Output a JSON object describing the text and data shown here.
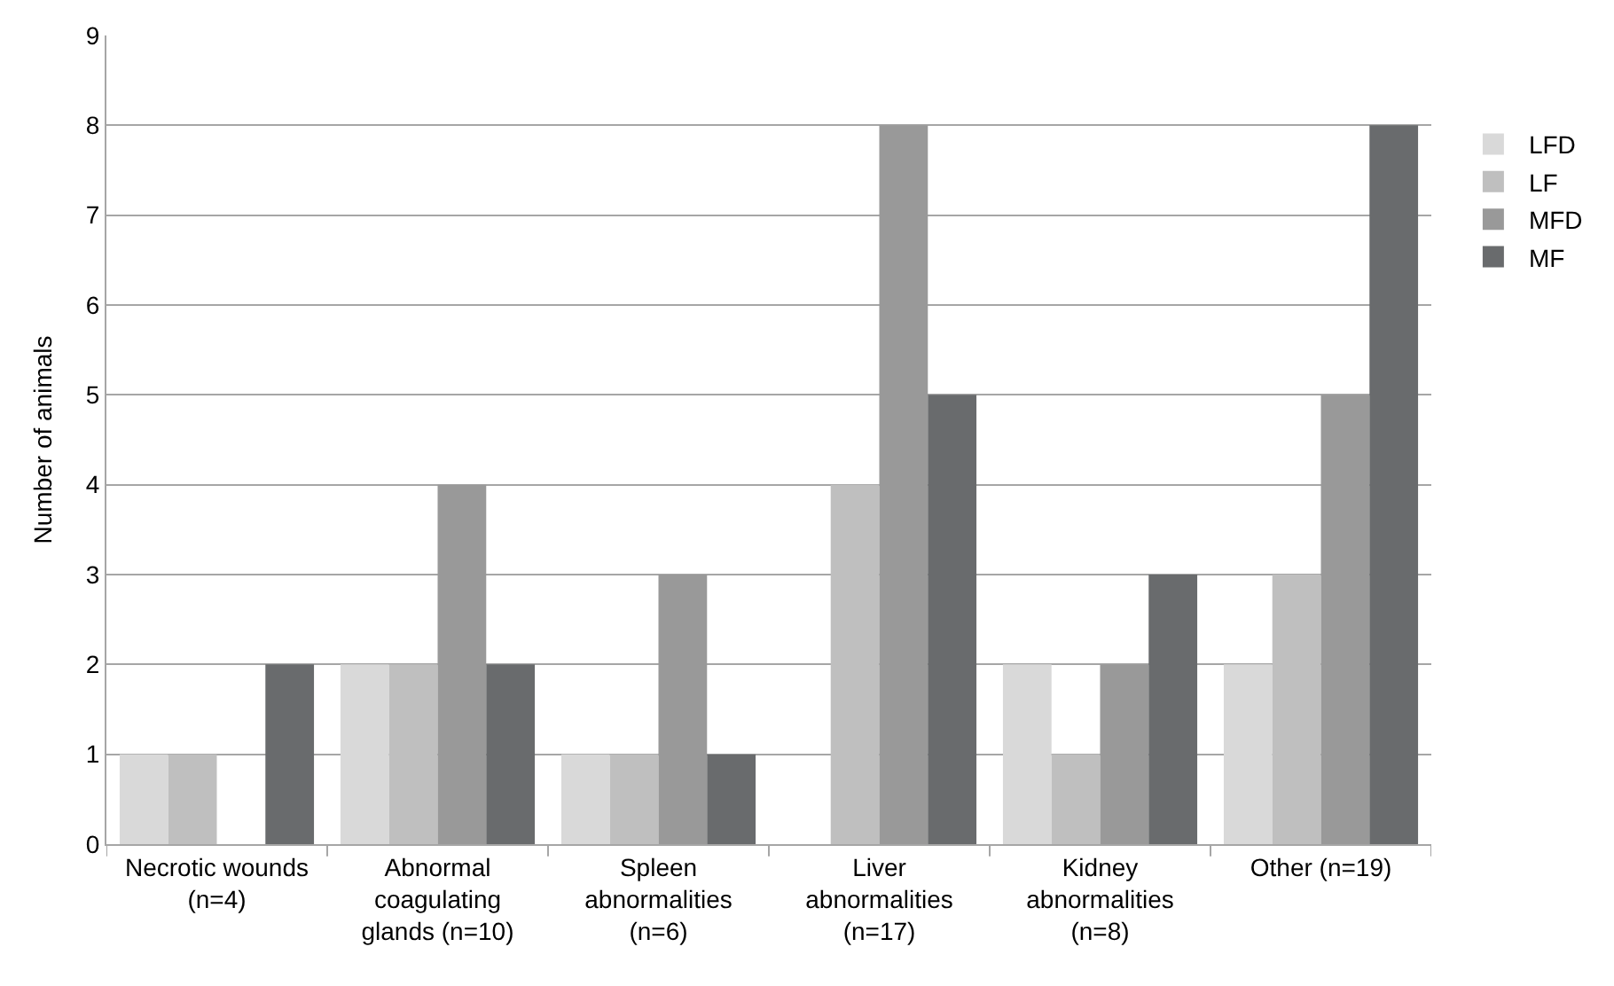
{
  "chart_data": {
    "type": "bar",
    "ylabel": "Number of animals",
    "categories": [
      "Necrotic wounds\n(n=4)",
      "Abnormal\ncoagulating\nglands (n=10)",
      "Spleen\nabnormalities\n(n=6)",
      "Liver\nabnormalities\n(n=17)",
      "Kidney\nabnormalities\n(n=8)",
      "Other (n=19)"
    ],
    "series": [
      {
        "name": "LFD",
        "color": "#d9d9d9",
        "values": [
          1,
          2,
          1,
          0,
          2,
          2
        ]
      },
      {
        "name": "LF",
        "color": "#bfbfbf",
        "values": [
          1,
          2,
          1,
          4,
          1,
          3
        ]
      },
      {
        "name": "MFD",
        "color": "#999999",
        "values": [
          0,
          4,
          3,
          8,
          2,
          5
        ]
      },
      {
        "name": "MF",
        "color": "#696b6d",
        "values": [
          2,
          2,
          1,
          5,
          3,
          8
        ]
      }
    ],
    "ylim": [
      0,
      9
    ],
    "yticks": [
      0,
      1,
      2,
      3,
      4,
      5,
      6,
      7,
      8,
      9
    ],
    "grid": "y",
    "legend": "right"
  }
}
